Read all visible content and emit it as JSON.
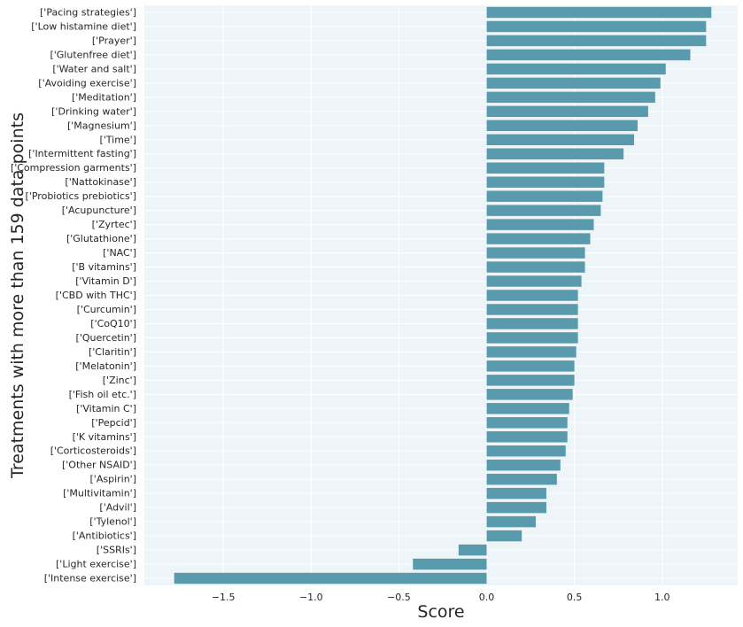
{
  "chart_data": {
    "type": "bar",
    "orientation": "horizontal",
    "title": "",
    "xlabel": "Score",
    "ylabel": "Treatments with more than 159 data points",
    "xlim": [
      -1.95,
      1.43
    ],
    "xticks": [
      -1.5,
      -1.0,
      -0.5,
      0.0,
      0.5,
      1.0
    ],
    "xtick_labels": [
      "−1.5",
      "−1.0",
      "−0.5",
      "0.0",
      "0.5",
      "1.0"
    ],
    "grid": true,
    "bar_color": "#5a9aad",
    "background_color": "#eef5f9",
    "categories": [
      "['Pacing strategies']",
      "['Low histamine diet']",
      "['Prayer']",
      "['Glutenfree diet']",
      "['Water and salt']",
      "['Avoiding exercise']",
      "['Meditation']",
      "['Drinking water']",
      "['Magnesium']",
      "['Time']",
      "['Intermittent fasting']",
      "['Compression garments']",
      "['Nattokinase']",
      "['Probiotics prebiotics']",
      "['Acupuncture']",
      "['Zyrtec']",
      "['Glutathione']",
      "['NAC']",
      "['B vitamins']",
      "['Vitamin D']",
      "['CBD with THC']",
      "['Curcumin']",
      "['CoQ10']",
      "['Quercetin']",
      "['Claritin']",
      "['Melatonin']",
      "['Zinc']",
      "['Fish oil etc.']",
      "['Vitamin C']",
      "['Pepcid']",
      "['K vitamins']",
      "['Corticosteroids']",
      "['Other NSAID']",
      "['Aspirin']",
      "['Multivitamin']",
      "['Advil']",
      "['Tylenol']",
      "['Antibiotics']",
      "['SSRIs']",
      "['Light exercise']",
      "['Intense exercise']"
    ],
    "values": [
      1.28,
      1.25,
      1.25,
      1.16,
      1.02,
      0.99,
      0.96,
      0.92,
      0.86,
      0.84,
      0.78,
      0.67,
      0.67,
      0.66,
      0.65,
      0.61,
      0.59,
      0.56,
      0.56,
      0.54,
      0.52,
      0.52,
      0.52,
      0.52,
      0.51,
      0.5,
      0.5,
      0.49,
      0.47,
      0.46,
      0.46,
      0.45,
      0.42,
      0.4,
      0.34,
      0.34,
      0.28,
      0.2,
      -0.16,
      -0.42,
      -1.78
    ]
  }
}
